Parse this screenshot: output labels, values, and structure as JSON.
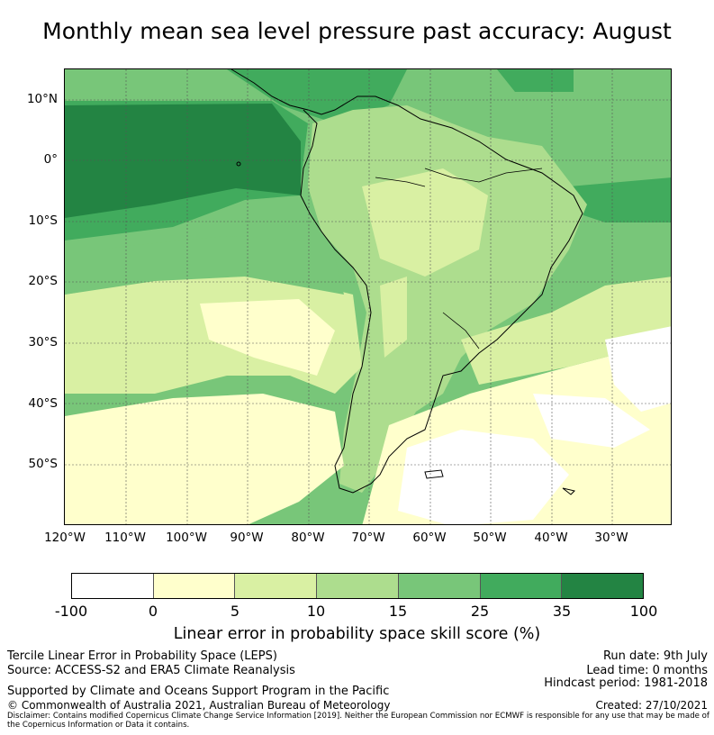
{
  "title": "Monthly mean sea level pressure past accuracy: August",
  "map": {
    "lat_labels": [
      "10°N",
      "0°",
      "10°S",
      "20°S",
      "30°S",
      "40°S",
      "50°S"
    ],
    "lon_labels": [
      "120°W",
      "110°W",
      "100°W",
      "90°W",
      "80°W",
      "70°W",
      "60°W",
      "50°W",
      "40°W",
      "30°W"
    ]
  },
  "colorbar": {
    "ticks": [
      "-100",
      "0",
      "5",
      "10",
      "15",
      "25",
      "35",
      "100"
    ],
    "colors": [
      "#ffffff",
      "#ffffcc",
      "#d9f0a3",
      "#addd8e",
      "#78c679",
      "#41ab5d",
      "#238443"
    ],
    "label": "Linear error in probability space skill score (%)"
  },
  "footer": {
    "line1": "Tercile Linear Error in Probability Space (LEPS)",
    "line2": "Source: ACCESS-S2 and ERA5 Climate Reanalysis",
    "run_date": "Run date: 9th July",
    "lead_time": "Lead time: 0 months",
    "hindcast": "Hindcast period: 1981-2018",
    "supported": "Supported by Climate and Oceans Support Program in the Pacific",
    "copyright": "© Commonwealth of Australia 2021, Australian Bureau of Meteorology",
    "created": "Created: 27/10/2021",
    "disclaimer": "Disclaimer: Contains modified Copernicus Climate Change Service Information [2019]. Neither the European Commission nor ECMWF is responsible for any use that may be made of the Copernicus Information or Data it contains."
  }
}
